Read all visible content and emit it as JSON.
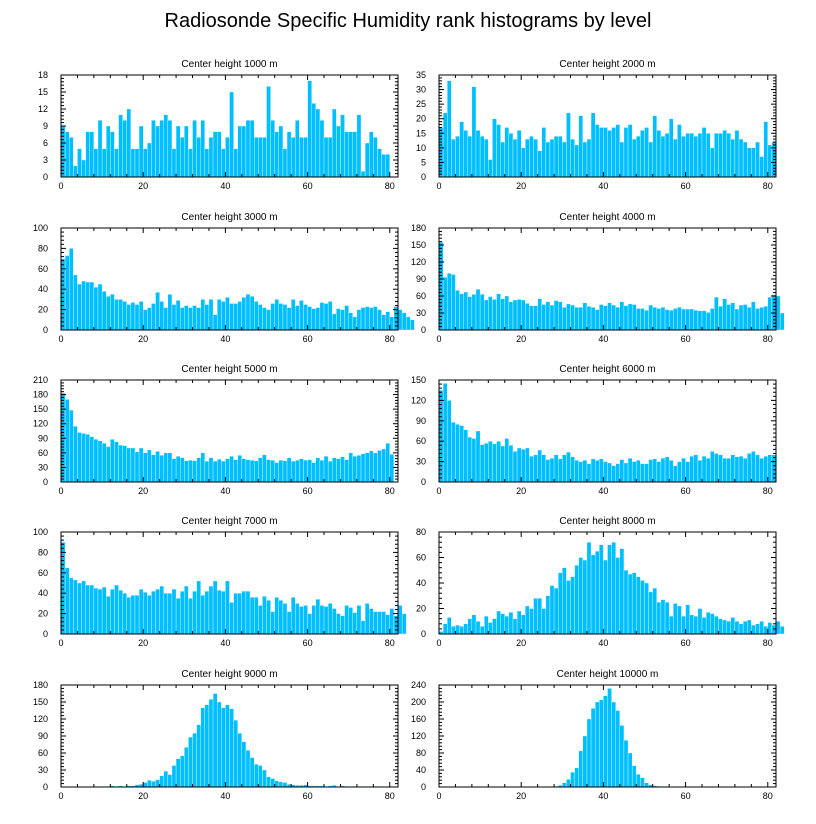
{
  "figure": {
    "title": "Radiosonde Specific Humidity rank histograms by level",
    "bar_color": "#00BFFF",
    "bar_edge_color": "#ffffff",
    "axis_color": "#000000"
  },
  "chart_data": [
    {
      "type": "bar",
      "title": "Center height 1000 m",
      "xlim": [
        0,
        82
      ],
      "ylim": [
        0,
        18
      ],
      "xticks": [
        0,
        20,
        40,
        60,
        80
      ],
      "yticks": [
        0,
        3,
        6,
        9,
        12,
        15,
        18
      ],
      "values": [
        9,
        8,
        7,
        2,
        5,
        3,
        8,
        8,
        5,
        10,
        5,
        9,
        8,
        5,
        11,
        10,
        12,
        5,
        5,
        9,
        5,
        6,
        10,
        9,
        10,
        11,
        10,
        5,
        9,
        7,
        9,
        5,
        10,
        7,
        10,
        5,
        7,
        8,
        8,
        5,
        7,
        15,
        5,
        9,
        9,
        10,
        10,
        7,
        7,
        7,
        16,
        10,
        8,
        9,
        5,
        8,
        7,
        10,
        7,
        7,
        17,
        13,
        12,
        10,
        7,
        7,
        12,
        9,
        11,
        8,
        8,
        8,
        11,
        1,
        6,
        8,
        7,
        5,
        4,
        4
      ],
      "xlabel": "",
      "ylabel": ""
    },
    {
      "type": "bar",
      "title": "Center height 2000 m",
      "xlim": [
        0,
        82
      ],
      "ylim": [
        0,
        35
      ],
      "xticks": [
        0,
        20,
        40,
        60,
        80
      ],
      "yticks": [
        0,
        5,
        10,
        15,
        20,
        25,
        30,
        35
      ],
      "values": [
        17,
        22,
        33,
        13,
        14,
        19,
        16,
        14,
        31,
        16,
        14,
        13,
        6,
        20,
        18,
        12,
        17,
        15,
        13,
        16,
        10,
        13,
        14,
        13,
        9,
        17,
        12,
        13,
        14,
        14,
        12,
        22,
        13,
        11,
        21,
        12,
        13,
        22,
        18,
        17,
        17,
        16,
        17,
        18,
        12,
        17,
        18,
        13,
        14,
        16,
        17,
        12,
        21,
        16,
        14,
        15,
        20,
        13,
        18,
        14,
        15,
        15,
        14,
        15,
        17,
        15,
        10,
        15,
        15,
        16,
        15,
        13,
        16,
        13,
        12,
        10,
        10,
        12,
        7,
        19,
        11,
        12
      ],
      "xlabel": "",
      "ylabel": ""
    },
    {
      "type": "bar",
      "title": "Center height 3000 m",
      "xlim": [
        0,
        82
      ],
      "ylim": [
        0,
        100
      ],
      "xticks": [
        0,
        20,
        40,
        60,
        80
      ],
      "yticks": [
        0,
        20,
        40,
        60,
        80,
        100
      ],
      "values": [
        70,
        73,
        80,
        54,
        45,
        48,
        47,
        47,
        42,
        45,
        38,
        33,
        35,
        30,
        30,
        28,
        25,
        27,
        25,
        28,
        20,
        22,
        26,
        37,
        28,
        22,
        35,
        25,
        29,
        22,
        24,
        22,
        24,
        22,
        30,
        25,
        30,
        15,
        30,
        28,
        32,
        26,
        26,
        28,
        32,
        35,
        33,
        28,
        25,
        22,
        20,
        26,
        30,
        26,
        25,
        22,
        30,
        24,
        29,
        25,
        23,
        21,
        22,
        27,
        26,
        28,
        16,
        21,
        20,
        24,
        17,
        13,
        20,
        22,
        23,
        22,
        23,
        20,
        15,
        18,
        13,
        23,
        20,
        17,
        13,
        10
      ],
      "xlabel": "",
      "ylabel": ""
    },
    {
      "type": "bar",
      "title": "Center height 4000 m",
      "xlim": [
        0,
        82
      ],
      "ylim": [
        0,
        180
      ],
      "xticks": [
        0,
        20,
        40,
        60,
        80
      ],
      "yticks": [
        0,
        30,
        60,
        90,
        120,
        150,
        180
      ],
      "values": [
        155,
        93,
        100,
        98,
        70,
        64,
        67,
        59,
        63,
        72,
        63,
        53,
        59,
        54,
        64,
        55,
        60,
        50,
        53,
        54,
        53,
        47,
        43,
        43,
        55,
        45,
        50,
        44,
        52,
        50,
        40,
        46,
        44,
        40,
        40,
        48,
        42,
        40,
        36,
        45,
        43,
        48,
        44,
        40,
        50,
        43,
        46,
        45,
        38,
        38,
        35,
        44,
        40,
        38,
        40,
        36,
        35,
        38,
        40,
        37,
        37,
        37,
        35,
        34,
        34,
        31,
        38,
        58,
        42,
        55,
        45,
        48,
        37,
        44,
        45,
        40,
        50,
        38,
        40,
        42,
        58,
        62,
        60,
        30
      ],
      "xlabel": "",
      "ylabel": ""
    },
    {
      "type": "bar",
      "title": "Center height 5000 m",
      "xlim": [
        0,
        82
      ],
      "ylim": [
        0,
        210
      ],
      "xticks": [
        0,
        20,
        40,
        60,
        80
      ],
      "yticks": [
        0,
        30,
        60,
        90,
        120,
        150,
        180,
        210
      ],
      "values": [
        183,
        170,
        148,
        115,
        102,
        100,
        98,
        93,
        88,
        85,
        80,
        73,
        88,
        83,
        76,
        75,
        70,
        70,
        62,
        70,
        60,
        66,
        56,
        63,
        55,
        60,
        60,
        48,
        53,
        50,
        44,
        45,
        44,
        50,
        60,
        43,
        50,
        43,
        47,
        43,
        48,
        53,
        46,
        55,
        48,
        46,
        45,
        44,
        50,
        56,
        46,
        45,
        40,
        45,
        44,
        50,
        43,
        45,
        48,
        45,
        46,
        40,
        50,
        45,
        53,
        43,
        50,
        48,
        52,
        46,
        60,
        53,
        55,
        58,
        60,
        64,
        60,
        65,
        68,
        80,
        57
      ],
      "xlabel": "",
      "ylabel": ""
    },
    {
      "type": "bar",
      "title": "Center height 6000 m",
      "xlim": [
        0,
        82
      ],
      "ylim": [
        0,
        150
      ],
      "xticks": [
        0,
        20,
        40,
        60,
        80
      ],
      "yticks": [
        0,
        30,
        60,
        90,
        120,
        150
      ],
      "values": [
        135,
        145,
        120,
        88,
        85,
        83,
        77,
        66,
        64,
        75,
        55,
        57,
        60,
        56,
        60,
        53,
        64,
        54,
        45,
        50,
        48,
        50,
        38,
        40,
        47,
        40,
        33,
        35,
        40,
        34,
        40,
        44,
        37,
        32,
        30,
        32,
        27,
        34,
        32,
        34,
        30,
        28,
        24,
        27,
        33,
        28,
        35,
        30,
        32,
        27,
        27,
        33,
        34,
        30,
        35,
        37,
        32,
        24,
        30,
        35,
        30,
        38,
        40,
        32,
        38,
        35,
        45,
        42,
        40,
        35,
        35,
        40,
        37,
        38,
        35,
        42,
        45,
        40,
        35,
        38,
        40,
        40
      ],
      "xlabel": "",
      "ylabel": ""
    },
    {
      "type": "bar",
      "title": "Center height 7000 m",
      "xlim": [
        0,
        82
      ],
      "ylim": [
        0,
        100
      ],
      "xticks": [
        0,
        20,
        40,
        60,
        80
      ],
      "yticks": [
        0,
        20,
        40,
        60,
        80,
        100
      ],
      "values": [
        90,
        65,
        55,
        53,
        50,
        52,
        48,
        48,
        45,
        44,
        46,
        37,
        44,
        48,
        43,
        40,
        36,
        38,
        38,
        44,
        41,
        38,
        42,
        44,
        47,
        40,
        40,
        44,
        35,
        42,
        47,
        35,
        42,
        52,
        38,
        42,
        47,
        52,
        43,
        42,
        52,
        31,
        40,
        40,
        42,
        42,
        36,
        36,
        28,
        37,
        33,
        22,
        36,
        33,
        30,
        22,
        36,
        30,
        27,
        28,
        20,
        28,
        34,
        28,
        27,
        30,
        25,
        20,
        18,
        28,
        26,
        21,
        28,
        13,
        30,
        25,
        22,
        22,
        22,
        19,
        25,
        18,
        28,
        20
      ],
      "xlabel": "",
      "ylabel": ""
    },
    {
      "type": "bar",
      "title": "Center height 8000 m",
      "xlim": [
        0,
        82
      ],
      "ylim": [
        0,
        80
      ],
      "xticks": [
        0,
        20,
        40,
        60,
        80
      ],
      "yticks": [
        0,
        20,
        40,
        60,
        80
      ],
      "values": [
        2,
        8,
        13,
        6,
        7,
        6,
        8,
        12,
        15,
        10,
        6,
        14,
        9,
        12,
        18,
        16,
        14,
        17,
        12,
        18,
        15,
        22,
        20,
        28,
        28,
        20,
        30,
        38,
        36,
        48,
        52,
        42,
        45,
        54,
        60,
        58,
        72,
        62,
        65,
        70,
        58,
        70,
        72,
        60,
        67,
        50,
        47,
        48,
        45,
        42,
        40,
        33,
        36,
        25,
        27,
        25,
        14,
        24,
        22,
        14,
        23,
        15,
        14,
        20,
        13,
        17,
        16,
        14,
        12,
        11,
        10,
        13,
        10,
        8,
        10,
        11,
        7,
        8,
        10,
        6,
        9,
        7,
        10,
        6
      ],
      "xlabel": "",
      "ylabel": ""
    },
    {
      "type": "bar",
      "title": "Center height 9000 m",
      "xlim": [
        0,
        82
      ],
      "ylim": [
        0,
        180
      ],
      "xticks": [
        0,
        20,
        40,
        60,
        80
      ],
      "yticks": [
        0,
        30,
        60,
        90,
        120,
        150,
        180
      ],
      "values": [
        0,
        0,
        0,
        0,
        0,
        0,
        0,
        0,
        0,
        0,
        1,
        1,
        2,
        1,
        2,
        1,
        2,
        2,
        4,
        5,
        8,
        12,
        10,
        13,
        20,
        28,
        22,
        38,
        50,
        55,
        70,
        88,
        95,
        110,
        140,
        145,
        155,
        165,
        150,
        140,
        145,
        138,
        118,
        95,
        80,
        65,
        52,
        40,
        38,
        30,
        18,
        15,
        11,
        9,
        8,
        5,
        4,
        3,
        3,
        4,
        2,
        2,
        2,
        2,
        1,
        2,
        3,
        1,
        2,
        1,
        1,
        1,
        1,
        1,
        0,
        1,
        1,
        1,
        0,
        1,
        0,
        0
      ],
      "xlabel": "",
      "ylabel": ""
    },
    {
      "type": "bar",
      "title": "Center height 10000 m",
      "xlim": [
        0,
        82
      ],
      "ylim": [
        0,
        240
      ],
      "xticks": [
        0,
        20,
        40,
        60,
        80
      ],
      "yticks": [
        0,
        40,
        80,
        120,
        160,
        200,
        240
      ],
      "values": [
        0,
        0,
        0,
        0,
        0,
        0,
        0,
        0,
        0,
        0,
        0,
        0,
        0,
        0,
        0,
        0,
        0,
        0,
        0,
        0,
        0,
        0,
        0,
        0,
        0,
        0,
        0,
        1,
        2,
        4,
        10,
        18,
        35,
        45,
        85,
        120,
        160,
        185,
        200,
        205,
        215,
        232,
        200,
        180,
        145,
        110,
        80,
        50,
        30,
        22,
        10,
        5,
        3,
        2,
        1,
        1,
        1,
        0,
        0,
        1,
        0,
        0,
        0,
        0,
        0,
        0,
        0,
        0,
        0,
        0,
        0,
        0,
        0,
        0,
        0,
        0,
        0,
        0,
        0,
        0,
        0,
        0
      ],
      "xlabel": "",
      "ylabel": ""
    }
  ]
}
